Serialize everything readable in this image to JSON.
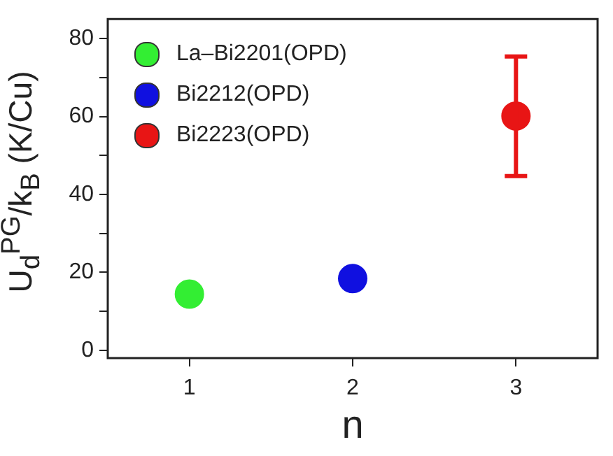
{
  "chart_data": {
    "type": "scatter",
    "xlabel": "n",
    "ylabel": "U$_{d}$$^{PG}$/k$_{B}$ (K/Cu)",
    "xlim": [
      0.5,
      3.5
    ],
    "ylim": [
      -2,
      85
    ],
    "xticks": [
      1,
      2,
      3
    ],
    "yticks": [
      0,
      {
        "value": 10,
        "label": null
      },
      20,
      {
        "value": 30,
        "label": null
      },
      40,
      {
        "value": 50,
        "label": null
      },
      60,
      {
        "value": 70,
        "label": null
      },
      80
    ],
    "grid": false,
    "legend": "top left",
    "marker": "circle",
    "series": [
      {
        "name": "La–Bi2201(OPD)",
        "color": "#33ee33",
        "x": [
          1
        ],
        "values": [
          14.4
        ]
      },
      {
        "name": "Bi2212(OPD)",
        "color": "#1010e0",
        "x": [
          2
        ],
        "values": [
          18.4
        ]
      },
      {
        "name": "Bi2223(OPD)",
        "color": "#e81515",
        "x": [
          3
        ],
        "values": [
          60.1
        ],
        "errors": [
          [
            44.7,
            75.4
          ]
        ]
      }
    ]
  }
}
